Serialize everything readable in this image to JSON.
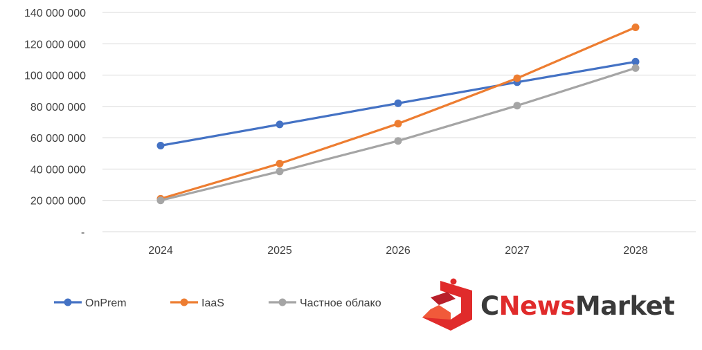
{
  "chart_data": {
    "type": "line",
    "categories": [
      "2024",
      "2025",
      "2026",
      "2027",
      "2028"
    ],
    "ylim": [
      0,
      140000000
    ],
    "y_ticks": [
      0,
      20000000,
      40000000,
      60000000,
      80000000,
      100000000,
      120000000,
      140000000
    ],
    "y_tick_labels": [
      "-",
      "20 000 000",
      "40 000 000",
      "60 000 000",
      "80 000 000",
      "100 000 000",
      "120 000 000",
      "140 000 000"
    ],
    "grid": true,
    "legend_position": "bottom-left",
    "series": [
      {
        "name": "OnPrem",
        "color": "#4472C4",
        "values": [
          55000000,
          68500000,
          82000000,
          95500000,
          108500000
        ]
      },
      {
        "name": "IaaS",
        "color": "#ED7D31",
        "values": [
          21000000,
          43500000,
          69000000,
          98000000,
          130500000
        ]
      },
      {
        "name": "Частное облако",
        "color": "#A5A5A5",
        "values": [
          20000000,
          38500000,
          58000000,
          80500000,
          104500000
        ]
      }
    ]
  },
  "logo": {
    "text_c": "C",
    "text_news": "News",
    "text_market": "Market",
    "color_red": "#E02B2B",
    "color_dark": "#3A3A3A"
  }
}
